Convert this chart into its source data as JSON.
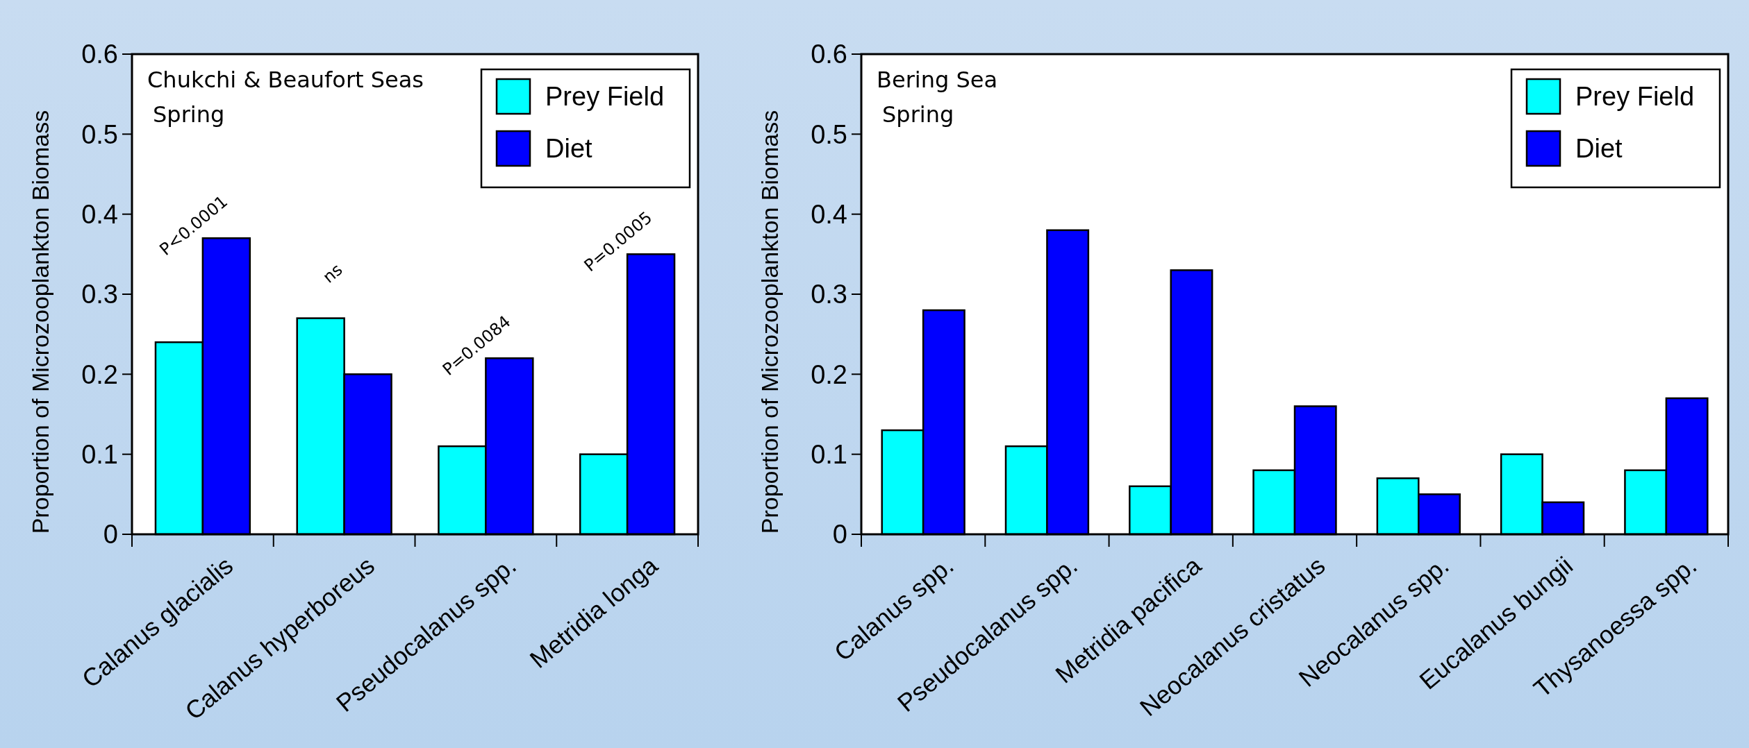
{
  "chart_data": [
    {
      "type": "bar",
      "title": "Chukchi & Beaufort Seas",
      "subtitle": "Spring",
      "ylabel": "Proportion of Microzooplankton Biomass",
      "categories": [
        "Calanus glacialis",
        "Calanus hyperboreus",
        "Pseudocalanus spp.",
        "Metridia longa"
      ],
      "series": [
        {
          "name": "Prey Field",
          "color": "#00ffff",
          "values": [
            0.24,
            0.27,
            0.11,
            0.1
          ]
        },
        {
          "name": "Diet",
          "color": "#0000ff",
          "values": [
            0.37,
            0.2,
            0.22,
            0.35
          ]
        }
      ],
      "ylim": [
        0,
        0.6
      ],
      "yticks": [
        0,
        0.1,
        0.2,
        0.3,
        0.4,
        0.5,
        0.6
      ],
      "legend": "top right",
      "grid": false,
      "annotations": [
        {
          "text": "P<0.0001",
          "x": "Calanus glacialis",
          "y": 0.37
        },
        "ns",
        {
          "text": "P=0.0084",
          "x": "Pseudocalanus spp.",
          "y": 0.22
        },
        {
          "text": "P=0.0005",
          "x": "Metridia longa",
          "y": 0.35
        }
      ]
    },
    {
      "type": "bar",
      "title": "Bering Sea",
      "subtitle": "Spring",
      "ylabel": "Proportion of Microzooplankton Biomass",
      "categories": [
        "Calanus spp.",
        "Pseudocalanus spp.",
        "Metridia pacifica",
        "Neocalanus cristatus",
        "Neocalanus spp.",
        "Eucalanus bungii",
        "Thysanoessa spp."
      ],
      "series": [
        {
          "name": "Prey Field",
          "color": "#00ffff",
          "values": [
            0.13,
            0.11,
            0.06,
            0.08,
            0.07,
            0.1,
            0.08
          ]
        },
        {
          "name": "Diet",
          "color": "#0000ff",
          "values": [
            0.28,
            0.38,
            0.33,
            0.16,
            0.05,
            0.04,
            0.17
          ]
        }
      ],
      "ylim": [
        0,
        0.6
      ],
      "yticks": [
        0,
        0.1,
        0.2,
        0.3,
        0.4,
        0.5,
        0.6
      ],
      "legend": "top right",
      "grid": false
    }
  ]
}
